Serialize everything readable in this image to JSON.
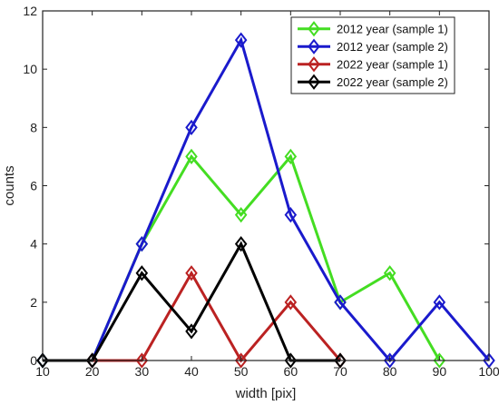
{
  "chart_data": {
    "type": "line",
    "xlabel": "width [pix]",
    "ylabel": "counts",
    "xlim": [
      10,
      100
    ],
    "ylim": [
      0,
      12
    ],
    "xticks": [
      "10",
      "20",
      "30",
      "40",
      "50",
      "60",
      "70",
      "80",
      "90",
      "100"
    ],
    "yticks": [
      "0",
      "2",
      "4",
      "6",
      "8",
      "10",
      "12"
    ],
    "grid": false,
    "legend_position": "top-right",
    "series": [
      {
        "name": "2012 year (sample 1)",
        "color": "#44dd22",
        "x": [
          10,
          20,
          30,
          40,
          50,
          60,
          70,
          80,
          90
        ],
        "y": [
          0,
          0,
          4,
          7,
          5,
          7,
          2,
          3,
          0
        ]
      },
      {
        "name": "2012 year (sample 2)",
        "color": "#1a1acc",
        "x": [
          10,
          20,
          30,
          40,
          50,
          60,
          70,
          80,
          90,
          100
        ],
        "y": [
          0,
          0,
          4,
          8,
          11,
          5,
          2,
          0,
          2,
          0
        ]
      },
      {
        "name": "2022 year (sample 1)",
        "color": "#bb2222",
        "x": [
          20,
          30,
          40,
          50,
          60,
          70
        ],
        "y": [
          0,
          0,
          3,
          0,
          2,
          0
        ]
      },
      {
        "name": "2022 year (sample 2)",
        "color": "#000000",
        "x": [
          10,
          20,
          30,
          40,
          50,
          60,
          70
        ],
        "y": [
          0,
          0,
          3,
          1,
          4,
          0,
          0
        ]
      }
    ]
  }
}
